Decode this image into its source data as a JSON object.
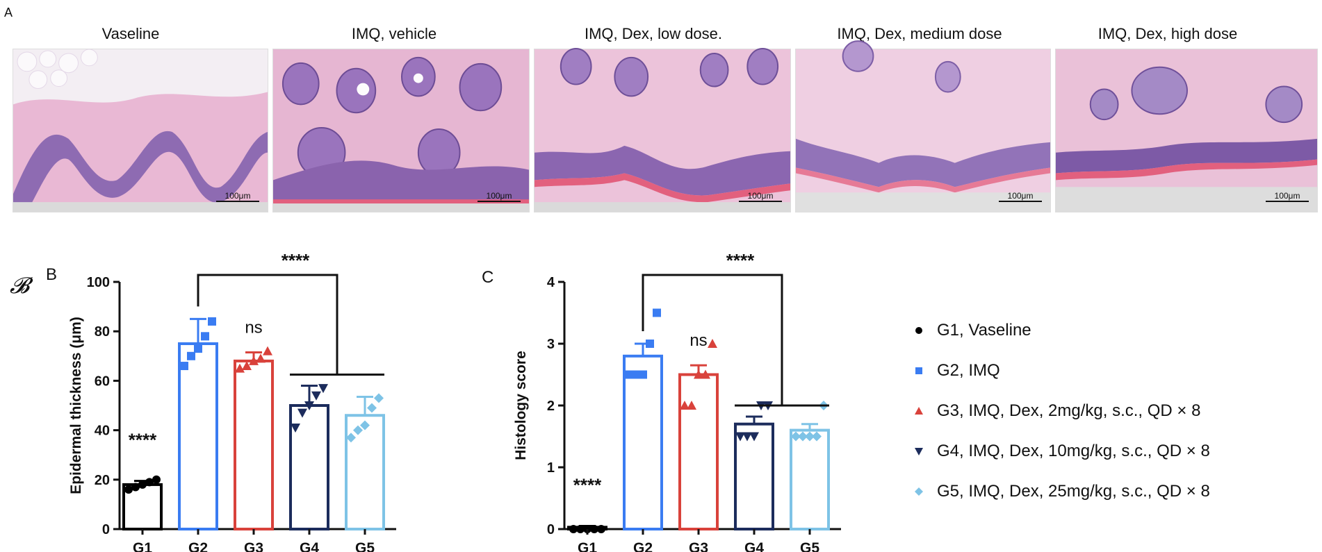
{
  "panel_labels": {
    "a": "A",
    "b": "B",
    "b_script": "𝓑",
    "c": "C"
  },
  "histology": {
    "panels": [
      {
        "title": "Vaseline",
        "scale": "100μm"
      },
      {
        "title": "IMQ, vehicle",
        "scale": "100μm"
      },
      {
        "title": "IMQ, Dex, low dose.",
        "scale": "100μm"
      },
      {
        "title": "IMQ, Dex,  medium dose",
        "scale": "100μm"
      },
      {
        "title": "IMQ, Dex,  high dose",
        "scale": "100μm"
      }
    ]
  },
  "legend": [
    {
      "label": "G1, Vaseline",
      "marker": "circle",
      "color": "#000000"
    },
    {
      "label": "G2, IMQ",
      "marker": "square",
      "color": "#3a7cf2"
    },
    {
      "label": "G3, IMQ, Dex, 2mg/kg, s.c., QD × 8",
      "marker": "triangle-up",
      "color": "#d9423b"
    },
    {
      "label": "G4, IMQ, Dex, 10mg/kg, s.c., QD × 8",
      "marker": "triangle-down",
      "color": "#1c2c5c"
    },
    {
      "label": "G5, IMQ, Dex, 25mg/kg, s.c., QD × 8",
      "marker": "diamond",
      "color": "#7ec3e6"
    }
  ],
  "chart_data": [
    {
      "type": "bar",
      "title": "",
      "xlabel": "",
      "ylabel": "Epidermal thickness (μm)",
      "ylim": [
        0,
        100
      ],
      "yticks": [
        "0",
        "20",
        "40",
        "60",
        "80",
        "100"
      ],
      "categories": [
        "G1",
        "G2",
        "G3",
        "G4",
        "G5"
      ],
      "values": [
        18,
        75,
        68,
        50,
        46
      ],
      "errors": [
        1.5,
        10,
        3.5,
        8,
        7.5
      ],
      "points": [
        [
          16,
          17,
          18,
          19,
          20
        ],
        [
          66,
          70,
          73,
          78,
          84
        ],
        [
          65,
          66,
          68,
          69,
          72
        ],
        [
          41,
          47,
          50,
          54,
          57
        ],
        [
          37,
          40,
          42,
          49,
          53
        ]
      ],
      "colors": [
        "#000000",
        "#3a7cf2",
        "#d9423b",
        "#1c2c5c",
        "#7ec3e6"
      ],
      "markers": [
        "circle",
        "square",
        "triangle-up",
        "triangle-down",
        "diamond"
      ],
      "annotations": {
        "g1": "****",
        "g3": "ns",
        "bracket": "****"
      }
    },
    {
      "type": "bar",
      "title": "",
      "xlabel": "",
      "ylabel": "Histology score",
      "ylim": [
        0,
        4
      ],
      "yticks": [
        "0",
        "1",
        "2",
        "3",
        "4"
      ],
      "categories": [
        "G1",
        "G2",
        "G3",
        "G4",
        "G5"
      ],
      "values": [
        0.03,
        2.8,
        2.5,
        1.7,
        1.6
      ],
      "errors": [
        0.02,
        0.2,
        0.15,
        0.12,
        0.1
      ],
      "points": [
        [
          0,
          0,
          0,
          0,
          0
        ],
        [
          2.5,
          2.5,
          2.5,
          3.0,
          3.5
        ],
        [
          2.0,
          2.0,
          2.5,
          2.5,
          3.0
        ],
        [
          1.5,
          1.5,
          1.5,
          2.0,
          2.0
        ],
        [
          1.5,
          1.5,
          1.5,
          1.5,
          2.0
        ]
      ],
      "colors": [
        "#000000",
        "#3a7cf2",
        "#d9423b",
        "#1c2c5c",
        "#7ec3e6"
      ],
      "markers": [
        "circle",
        "square",
        "triangle-up",
        "triangle-down",
        "diamond"
      ],
      "annotations": {
        "g1": "****",
        "g3": "ns",
        "bracket": "****"
      }
    }
  ]
}
